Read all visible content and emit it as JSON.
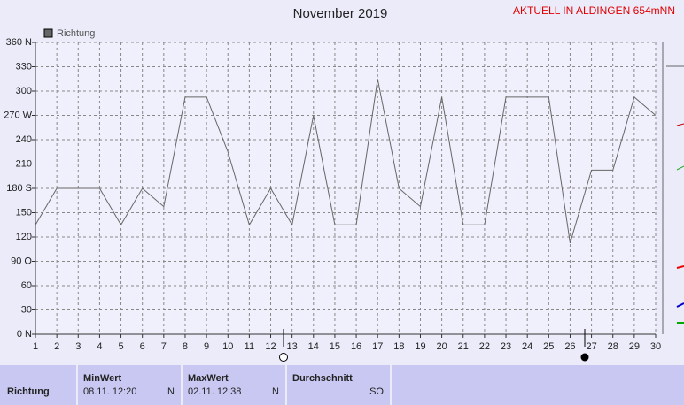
{
  "chart_data": {
    "type": "line",
    "title": "November 2019",
    "x": [
      1,
      2,
      3,
      4,
      5,
      6,
      7,
      8,
      9,
      10,
      11,
      12,
      13,
      14,
      15,
      16,
      17,
      18,
      19,
      20,
      21,
      22,
      23,
      24,
      25,
      26,
      27,
      28,
      29,
      30
    ],
    "series": [
      {
        "name": "Richtung",
        "color": "#666666",
        "values": [
          135,
          180,
          180,
          180,
          135,
          180,
          157.5,
          292.5,
          292.5,
          225,
          135,
          180,
          135,
          270,
          135,
          135,
          315,
          180,
          157.5,
          292.5,
          135,
          135,
          292.5,
          292.5,
          292.5,
          112.5,
          202.5,
          202.5,
          292.5,
          270
        ]
      }
    ],
    "xlim": [
      1,
      30
    ],
    "xticks": [
      1,
      2,
      3,
      4,
      5,
      6,
      7,
      8,
      9,
      10,
      11,
      12,
      13,
      14,
      15,
      16,
      17,
      18,
      19,
      20,
      21,
      22,
      23,
      24,
      25,
      26,
      27,
      28,
      29,
      30
    ],
    "ylim": [
      0,
      360
    ],
    "yticks": [
      {
        "value": 0,
        "label": "0 N"
      },
      30,
      60,
      {
        "value": 90,
        "label": "90 O"
      },
      120,
      150,
      {
        "value": 180,
        "label": "180 S"
      },
      210,
      240,
      {
        "value": 270,
        "label": "270 W"
      },
      300,
      330,
      {
        "value": 360,
        "label": "360 N"
      }
    ],
    "grid": true,
    "legend": "top-left"
  },
  "header": {
    "station": "AKTUELL IN ALDINGEN 654mNN"
  },
  "table": {
    "row_label": "Richtung",
    "min": {
      "title": "MinWert",
      "time": "08.11.  12:20",
      "value": "N"
    },
    "max": {
      "title": "MaxWert",
      "time": "02.11.  12:38",
      "value": "N"
    },
    "avg": {
      "title": "Durchschnitt",
      "value": "SO"
    }
  }
}
